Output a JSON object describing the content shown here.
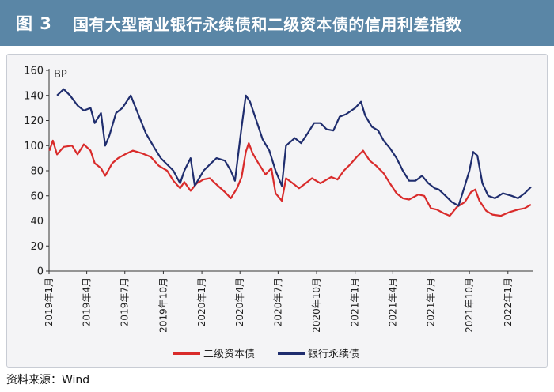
{
  "figure": {
    "label": "图 3",
    "title": "国有大型商业银行永续债和二级资本债的信用利差指数"
  },
  "source": "资料来源：Wind",
  "colors": {
    "header": "#5a86a6",
    "series_secondary": "#d92b2b",
    "series_perpetual": "#1f2d6e"
  },
  "chart_data": {
    "type": "line",
    "ylabel": "BP",
    "xlabel": "",
    "ylim": [
      0,
      160
    ],
    "yticks": [
      0,
      20,
      40,
      60,
      80,
      100,
      120,
      140,
      160
    ],
    "x_start": "2019-01",
    "x_end": "2022-03",
    "xticks": [
      "2019年1月",
      "2019年4月",
      "2019年7月",
      "2019年10月",
      "2020年1月",
      "2020年4月",
      "2020年7月",
      "2020年10月",
      "2021年1月",
      "2021年4月",
      "2021年7月",
      "2021年10月",
      "2022年1月"
    ],
    "legend_position": "bottom",
    "grid": false,
    "series": [
      {
        "name": "二级资本债",
        "color": "#d92b2b",
        "points": [
          [
            "2019-01-02",
            96
          ],
          [
            "2019-01-10",
            104
          ],
          [
            "2019-01-20",
            93
          ],
          [
            "2019-02-05",
            99
          ],
          [
            "2019-02-25",
            100
          ],
          [
            "2019-03-10",
            93
          ],
          [
            "2019-03-25",
            101
          ],
          [
            "2019-04-10",
            96
          ],
          [
            "2019-04-20",
            86
          ],
          [
            "2019-05-05",
            82
          ],
          [
            "2019-05-15",
            76
          ],
          [
            "2019-06-01",
            86
          ],
          [
            "2019-06-15",
            90
          ],
          [
            "2019-07-01",
            93
          ],
          [
            "2019-07-20",
            96
          ],
          [
            "2019-08-10",
            94
          ],
          [
            "2019-09-01",
            91
          ],
          [
            "2019-09-20",
            84
          ],
          [
            "2019-10-10",
            80
          ],
          [
            "2019-10-25",
            72
          ],
          [
            "2019-11-10",
            66
          ],
          [
            "2019-11-20",
            71
          ],
          [
            "2019-12-05",
            64
          ],
          [
            "2019-12-20",
            70
          ],
          [
            "2020-01-05",
            73
          ],
          [
            "2020-01-20",
            74
          ],
          [
            "2020-02-05",
            69
          ],
          [
            "2020-02-25",
            63
          ],
          [
            "2020-03-10",
            58
          ],
          [
            "2020-03-25",
            66
          ],
          [
            "2020-04-05",
            75
          ],
          [
            "2020-04-15",
            95
          ],
          [
            "2020-04-22",
            102
          ],
          [
            "2020-05-01",
            94
          ],
          [
            "2020-05-15",
            86
          ],
          [
            "2020-06-01",
            77
          ],
          [
            "2020-06-15",
            82
          ],
          [
            "2020-06-25",
            62
          ],
          [
            "2020-07-10",
            56
          ],
          [
            "2020-07-20",
            74
          ],
          [
            "2020-08-05",
            70
          ],
          [
            "2020-08-20",
            66
          ],
          [
            "2020-09-05",
            70
          ],
          [
            "2020-09-20",
            74
          ],
          [
            "2020-10-10",
            70
          ],
          [
            "2020-11-05",
            75
          ],
          [
            "2020-11-20",
            73
          ],
          [
            "2020-12-05",
            80
          ],
          [
            "2020-12-20",
            85
          ],
          [
            "2021-01-05",
            91
          ],
          [
            "2021-01-20",
            96
          ],
          [
            "2021-02-05",
            88
          ],
          [
            "2021-02-20",
            84
          ],
          [
            "2021-03-10",
            78
          ],
          [
            "2021-03-25",
            70
          ],
          [
            "2021-04-10",
            62
          ],
          [
            "2021-04-25",
            58
          ],
          [
            "2021-05-10",
            57
          ],
          [
            "2021-06-01",
            61
          ],
          [
            "2021-06-15",
            60
          ],
          [
            "2021-07-01",
            50
          ],
          [
            "2021-07-15",
            49
          ],
          [
            "2021-08-01",
            46
          ],
          [
            "2021-08-15",
            44
          ],
          [
            "2021-09-01",
            51
          ],
          [
            "2021-09-20",
            55
          ],
          [
            "2021-10-05",
            63
          ],
          [
            "2021-10-15",
            65
          ],
          [
            "2021-10-25",
            56
          ],
          [
            "2021-11-10",
            48
          ],
          [
            "2021-11-25",
            45
          ],
          [
            "2021-12-15",
            44
          ],
          [
            "2022-01-05",
            47
          ],
          [
            "2022-01-25",
            49
          ],
          [
            "2022-02-10",
            50
          ],
          [
            "2022-02-25",
            53
          ]
        ]
      },
      {
        "name": "银行永续债",
        "color": "#1f2d6e",
        "points": [
          [
            "2019-01-20",
            140
          ],
          [
            "2019-02-05",
            145
          ],
          [
            "2019-02-20",
            140
          ],
          [
            "2019-03-10",
            132
          ],
          [
            "2019-03-25",
            128
          ],
          [
            "2019-04-10",
            130
          ],
          [
            "2019-04-20",
            118
          ],
          [
            "2019-05-05",
            126
          ],
          [
            "2019-05-15",
            100
          ],
          [
            "2019-05-25",
            108
          ],
          [
            "2019-06-10",
            126
          ],
          [
            "2019-06-25",
            130
          ],
          [
            "2019-07-05",
            135
          ],
          [
            "2019-07-15",
            140
          ],
          [
            "2019-08-01",
            126
          ],
          [
            "2019-08-20",
            110
          ],
          [
            "2019-09-10",
            98
          ],
          [
            "2019-09-25",
            90
          ],
          [
            "2019-10-10",
            85
          ],
          [
            "2019-10-25",
            80
          ],
          [
            "2019-11-10",
            70
          ],
          [
            "2019-11-20",
            80
          ],
          [
            "2019-12-05",
            90
          ],
          [
            "2019-12-15",
            68
          ],
          [
            "2020-01-05",
            80
          ],
          [
            "2020-01-20",
            85
          ],
          [
            "2020-02-05",
            90
          ],
          [
            "2020-02-25",
            88
          ],
          [
            "2020-03-10",
            80
          ],
          [
            "2020-03-20",
            72
          ],
          [
            "2020-04-05",
            115
          ],
          [
            "2020-04-15",
            140
          ],
          [
            "2020-04-25",
            135
          ],
          [
            "2020-05-10",
            120
          ],
          [
            "2020-05-25",
            105
          ],
          [
            "2020-06-10",
            96
          ],
          [
            "2020-06-25",
            80
          ],
          [
            "2020-07-10",
            68
          ],
          [
            "2020-07-20",
            100
          ],
          [
            "2020-08-10",
            106
          ],
          [
            "2020-08-25",
            102
          ],
          [
            "2020-09-10",
            110
          ],
          [
            "2020-09-25",
            118
          ],
          [
            "2020-10-10",
            118
          ],
          [
            "2020-10-25",
            113
          ],
          [
            "2020-11-10",
            112
          ],
          [
            "2020-11-25",
            123
          ],
          [
            "2020-12-10",
            125
          ],
          [
            "2021-01-01",
            130
          ],
          [
            "2021-01-15",
            135
          ],
          [
            "2021-01-25",
            124
          ],
          [
            "2021-02-10",
            115
          ],
          [
            "2021-02-25",
            112
          ],
          [
            "2021-03-10",
            104
          ],
          [
            "2021-03-25",
            98
          ],
          [
            "2021-04-10",
            90
          ],
          [
            "2021-04-25",
            80
          ],
          [
            "2021-05-10",
            72
          ],
          [
            "2021-05-25",
            72
          ],
          [
            "2021-06-10",
            76
          ],
          [
            "2021-06-25",
            70
          ],
          [
            "2021-07-10",
            66
          ],
          [
            "2021-07-20",
            65
          ],
          [
            "2021-08-05",
            60
          ],
          [
            "2021-08-20",
            55
          ],
          [
            "2021-09-05",
            52
          ],
          [
            "2021-09-20",
            68
          ],
          [
            "2021-10-01",
            80
          ],
          [
            "2021-10-10",
            95
          ],
          [
            "2021-10-20",
            92
          ],
          [
            "2021-11-01",
            70
          ],
          [
            "2021-11-15",
            60
          ],
          [
            "2021-12-01",
            58
          ],
          [
            "2021-12-20",
            62
          ],
          [
            "2022-01-10",
            60
          ],
          [
            "2022-01-25",
            58
          ],
          [
            "2022-02-10",
            62
          ],
          [
            "2022-02-25",
            67
          ]
        ]
      }
    ]
  }
}
